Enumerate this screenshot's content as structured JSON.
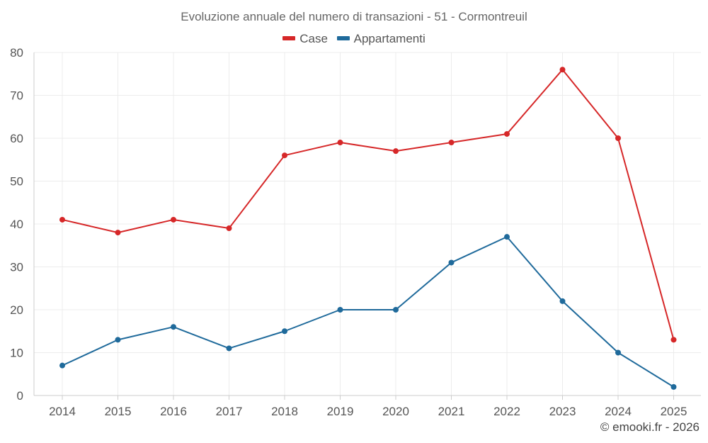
{
  "chart_data": {
    "type": "line",
    "title": "Evoluzione annuale del numero di transazioni - 51 - Cormontreuil",
    "categories": [
      "2014",
      "2015",
      "2016",
      "2017",
      "2018",
      "2019",
      "2020",
      "2021",
      "2022",
      "2023",
      "2024",
      "2025"
    ],
    "series": [
      {
        "name": "Case",
        "color": "#d62728",
        "values": [
          41,
          38,
          41,
          39,
          56,
          59,
          57,
          59,
          61,
          76,
          60,
          13
        ]
      },
      {
        "name": "Appartamenti",
        "color": "#1f6a9b",
        "values": [
          7,
          13,
          16,
          11,
          15,
          20,
          20,
          31,
          37,
          22,
          10,
          2
        ]
      }
    ],
    "ylim": [
      0,
      80
    ],
    "yticks": [
      0,
      10,
      20,
      30,
      40,
      50,
      60,
      70,
      80
    ],
    "grid": true,
    "legend": "top-center",
    "xlabel": "",
    "ylabel": ""
  },
  "credit": "© emooki.fr - 2026"
}
